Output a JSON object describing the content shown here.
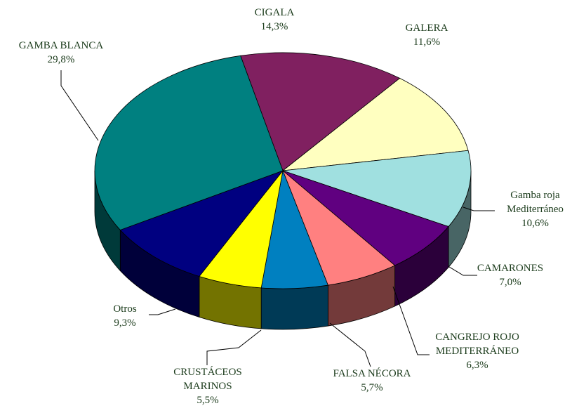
{
  "chart_data": {
    "type": "pie",
    "categories": [
      "CIGALA",
      "GALERA",
      "Gamba roja Mediterráneo",
      "CAMARONES",
      "CANGREJO ROJO MEDITERRÁNEO",
      "FALSA NÉCORA",
      "CRUSTÁCEOS MARINOS",
      "Otros",
      "GAMBA BLANCA"
    ],
    "values": [
      14.3,
      11.6,
      10.6,
      7.0,
      6.3,
      5.7,
      5.5,
      9.3,
      29.8
    ],
    "value_labels": [
      "14,3%",
      "11,6%",
      "10,6%",
      "7,0%",
      "6,3%",
      "5,7%",
      "5,5%",
      "9,3%",
      "29,8%"
    ],
    "colors": [
      "#802060",
      "#ffffc0",
      "#a0e0e0",
      "#600080",
      "#ff8080",
      "#0080c0",
      "#ffff00",
      "#000080",
      "#008080"
    ]
  }
}
